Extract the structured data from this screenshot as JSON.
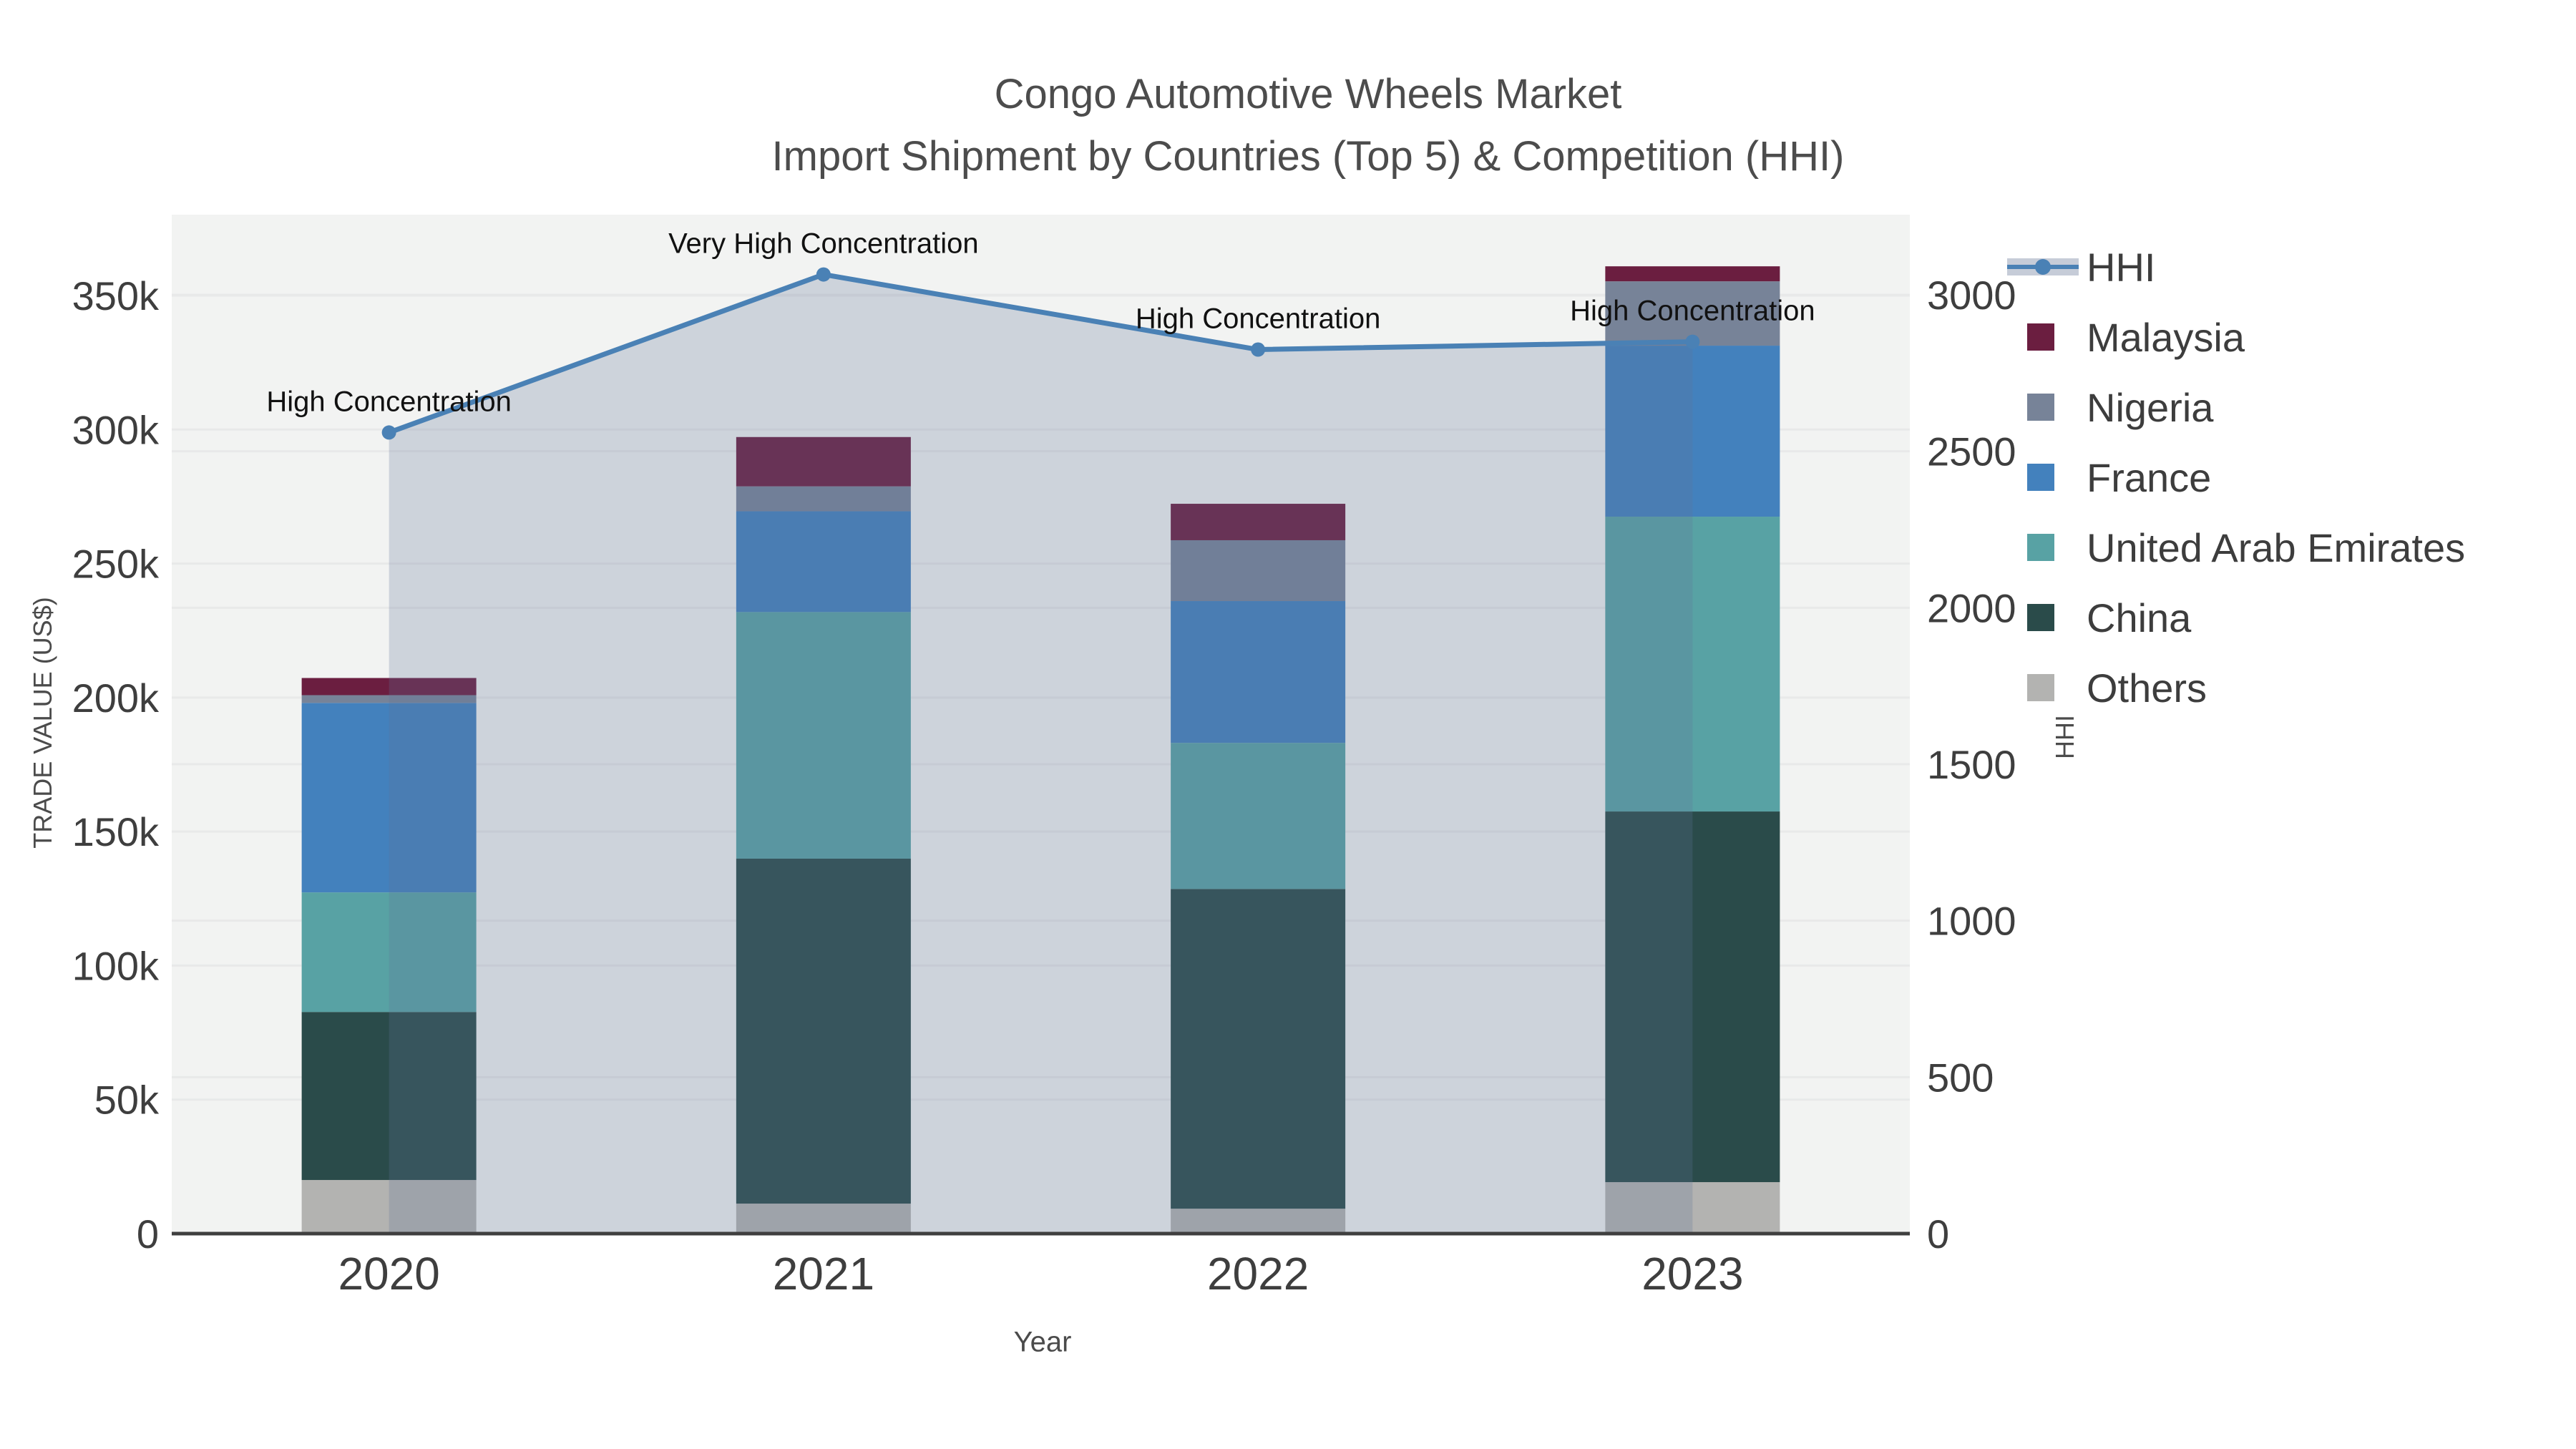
{
  "title": {
    "line1": "Congo Automotive Wheels Market",
    "line2": "Import Shipment by Countries (Top 5) & Competition (HHI)"
  },
  "axes": {
    "x_title": "Year",
    "y_left_title": "TRADE VALUE (US$)",
    "y_right_title": "HHI"
  },
  "legend": [
    "HHI",
    "Malaysia",
    "Nigeria",
    "France",
    "United Arab Emirates",
    "China",
    "Others"
  ],
  "colors": {
    "background": "#ffffff",
    "plot_background": "#f2f3f2",
    "gridline": "#e8e9e9",
    "axis_line": "#3f3f3f",
    "tick_text": "#3e3e3e",
    "title_text": "#4c4c4c",
    "annotation_text": "#111111",
    "hhi_line": "#4a81b5",
    "hhi_fill": "rgba(94,114,150,0.25)",
    "legend_hhi_band": "#c6ccd8"
  },
  "chart_data": {
    "type": "bar",
    "subtype": "stacked-bars-with-line-overlay",
    "title": "Congo Automotive Wheels Market",
    "subtitle": "Import Shipment by Countries (Top 5) & Competition (HHI)",
    "xlabel": "Year",
    "ylabel_left": "TRADE VALUE (US$)",
    "ylabel_right": "HHI",
    "categories": [
      "2020",
      "2021",
      "2022",
      "2023"
    ],
    "stack_order_note": "bottom to top: Others, China, United Arab Emirates, France, Nigeria, Malaysia",
    "series": [
      {
        "name": "Malaysia",
        "color": "#6b1e40",
        "values": [
          6400,
          18400,
          13600,
          5600
        ]
      },
      {
        "name": "Nigeria",
        "color": "#778398",
        "values": [
          2900,
          9300,
          22700,
          24000
        ]
      },
      {
        "name": "France",
        "color": "#4381bd",
        "values": [
          70700,
          37600,
          52900,
          63800
        ]
      },
      {
        "name": "United Arab Emirates",
        "color": "#58a2a4",
        "values": [
          44600,
          92000,
          54500,
          110000
        ]
      },
      {
        "name": "China",
        "color": "#2a4b4a",
        "values": [
          62700,
          128700,
          119300,
          138300
        ]
      },
      {
        "name": "Others",
        "color": "#b3b3b1",
        "values": [
          20000,
          11200,
          9300,
          19200
        ]
      }
    ],
    "bar_totals": [
      207300,
      297200,
      272300,
      361000
    ],
    "line_series": {
      "name": "HHI",
      "axis": "right",
      "color": "#4a81b5",
      "fill": "rgba(94,114,150,0.25)",
      "values": [
        2560,
        3065,
        2825,
        2850
      ]
    },
    "annotations": [
      {
        "text": "High Concentration",
        "category": "2020"
      },
      {
        "text": "Very High Concentration",
        "category": "2021"
      },
      {
        "text": "High Concentration",
        "category": "2022"
      },
      {
        "text": "High Concentration",
        "category": "2023"
      }
    ],
    "y_left": {
      "min": 0,
      "max": 380000,
      "tick_step": 50000,
      "tick_max": 350000,
      "tick_suffix": "k"
    },
    "y_right": {
      "min": 0,
      "max": 3260,
      "tick_step": 500,
      "tick_max": 3000
    },
    "grid": true,
    "legend_position": "right"
  }
}
